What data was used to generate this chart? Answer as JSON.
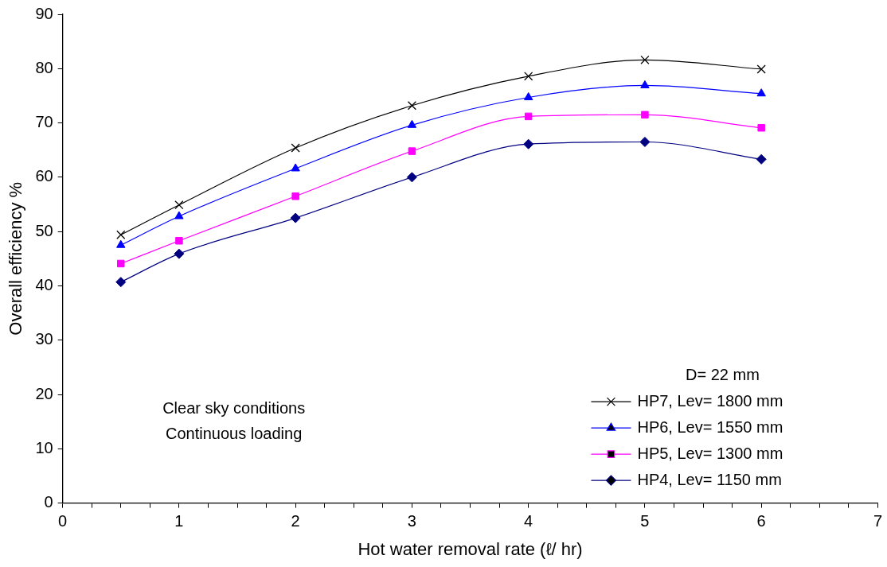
{
  "chart_data": {
    "type": "line",
    "xlabel": "Hot water removal rate (ℓ/ hr)",
    "ylabel": "Overall efficiency %",
    "legend_title": "D= 22 mm",
    "legend": "bottom right",
    "grid": false,
    "x": [
      0.5,
      1,
      2,
      3,
      4,
      5,
      6
    ],
    "series": [
      {
        "name": "HP7, Lev= 1800 mm",
        "color": "#000000",
        "marker": "cross",
        "values": [
          49.4,
          54.9,
          65.4,
          73.2,
          78.6,
          81.6,
          79.9
        ]
      },
      {
        "name": "HP6, Lev= 1550 mm",
        "color": "#0000ff",
        "marker": "triangle",
        "values": [
          47.5,
          52.8,
          61.6,
          69.6,
          74.7,
          76.9,
          75.4
        ]
      },
      {
        "name": "HP5, Lev= 1300 mm",
        "color": "#ff00ff",
        "marker": "square",
        "values": [
          44.1,
          48.3,
          56.5,
          64.8,
          71.2,
          71.5,
          69.1
        ]
      },
      {
        "name": "HP4, Lev= 1150 mm",
        "color": "#000080",
        "marker": "diamond",
        "values": [
          40.7,
          45.9,
          52.5,
          60.0,
          66.1,
          66.5,
          63.3
        ]
      }
    ],
    "xlim": [
      0,
      7
    ],
    "xticks": [
      0,
      {
        "value": 0.25,
        "label": null
      },
      {
        "value": 0.5,
        "label": null
      },
      {
        "value": 0.75,
        "label": null
      },
      1,
      {
        "value": 1.25,
        "label": null
      },
      {
        "value": 1.5,
        "label": null
      },
      {
        "value": 1.75,
        "label": null
      },
      2,
      {
        "value": 2.25,
        "label": null
      },
      {
        "value": 2.5,
        "label": null
      },
      {
        "value": 2.75,
        "label": null
      },
      3,
      {
        "value": 3.25,
        "label": null
      },
      {
        "value": 3.5,
        "label": null
      },
      {
        "value": 3.75,
        "label": null
      },
      4,
      {
        "value": 4.25,
        "label": null
      },
      {
        "value": 4.5,
        "label": null
      },
      {
        "value": 4.75,
        "label": null
      },
      5,
      {
        "value": 5.25,
        "label": null
      },
      {
        "value": 5.5,
        "label": null
      },
      {
        "value": 5.75,
        "label": null
      },
      6,
      {
        "value": 6.25,
        "label": null
      },
      {
        "value": 6.5,
        "label": null
      },
      {
        "value": 6.75,
        "label": null
      },
      7
    ],
    "ylim": [
      0,
      90
    ],
    "yticks": [
      0,
      10,
      20,
      30,
      40,
      50,
      60,
      70,
      80,
      90
    ],
    "annotations": [
      "Clear sky conditions",
      "Continuous loading"
    ]
  }
}
